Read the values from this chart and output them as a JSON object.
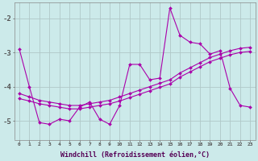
{
  "xlabel": "Windchill (Refroidissement éolien,°C)",
  "background_color": "#cceaea",
  "grid_color": "#b0c8c8",
  "line_color": "#aa00aa",
  "xlim": [
    -0.5,
    23.5
  ],
  "ylim": [
    -5.55,
    -1.55
  ],
  "yticks": [
    -5,
    -4,
    -3,
    -2
  ],
  "xticks": [
    0,
    1,
    2,
    3,
    4,
    5,
    6,
    7,
    8,
    9,
    10,
    11,
    12,
    13,
    14,
    15,
    16,
    17,
    18,
    19,
    20,
    21,
    22,
    23
  ],
  "main_x": [
    0,
    1,
    2,
    3,
    4,
    5,
    6,
    7,
    8,
    9,
    10,
    11,
    12,
    13,
    14,
    15,
    16,
    17,
    18,
    19,
    20,
    21,
    22,
    23
  ],
  "main_y": [
    -2.9,
    -4.0,
    -5.05,
    -5.1,
    -4.95,
    -5.0,
    -4.6,
    -4.45,
    -4.95,
    -5.1,
    -4.55,
    -3.35,
    -3.35,
    -3.8,
    -3.75,
    -1.7,
    -2.5,
    -2.7,
    -2.75,
    -3.05,
    -2.95,
    -4.05,
    -4.55,
    -4.6
  ],
  "trend1_x": [
    0,
    1,
    2,
    3,
    4,
    5,
    6,
    7,
    8,
    9,
    10,
    11,
    12,
    13,
    14,
    15,
    16,
    17,
    18,
    19,
    20,
    21,
    22,
    23
  ],
  "trend1_y": [
    -4.2,
    -4.3,
    -4.4,
    -4.45,
    -4.5,
    -4.55,
    -4.55,
    -4.5,
    -4.45,
    -4.4,
    -4.3,
    -4.2,
    -4.1,
    -4.0,
    -3.9,
    -3.8,
    -3.6,
    -3.45,
    -3.3,
    -3.15,
    -3.05,
    -2.95,
    -2.88,
    -2.85
  ],
  "trend2_x": [
    0,
    1,
    2,
    3,
    4,
    5,
    6,
    7,
    8,
    9,
    10,
    11,
    12,
    13,
    14,
    15,
    16,
    17,
    18,
    19,
    20,
    21,
    22,
    23
  ],
  "trend2_y": [
    -4.35,
    -4.42,
    -4.5,
    -4.55,
    -4.6,
    -4.65,
    -4.65,
    -4.6,
    -4.55,
    -4.5,
    -4.42,
    -4.32,
    -4.22,
    -4.12,
    -4.02,
    -3.92,
    -3.72,
    -3.57,
    -3.42,
    -3.27,
    -3.17,
    -3.07,
    -3.0,
    -2.97
  ]
}
